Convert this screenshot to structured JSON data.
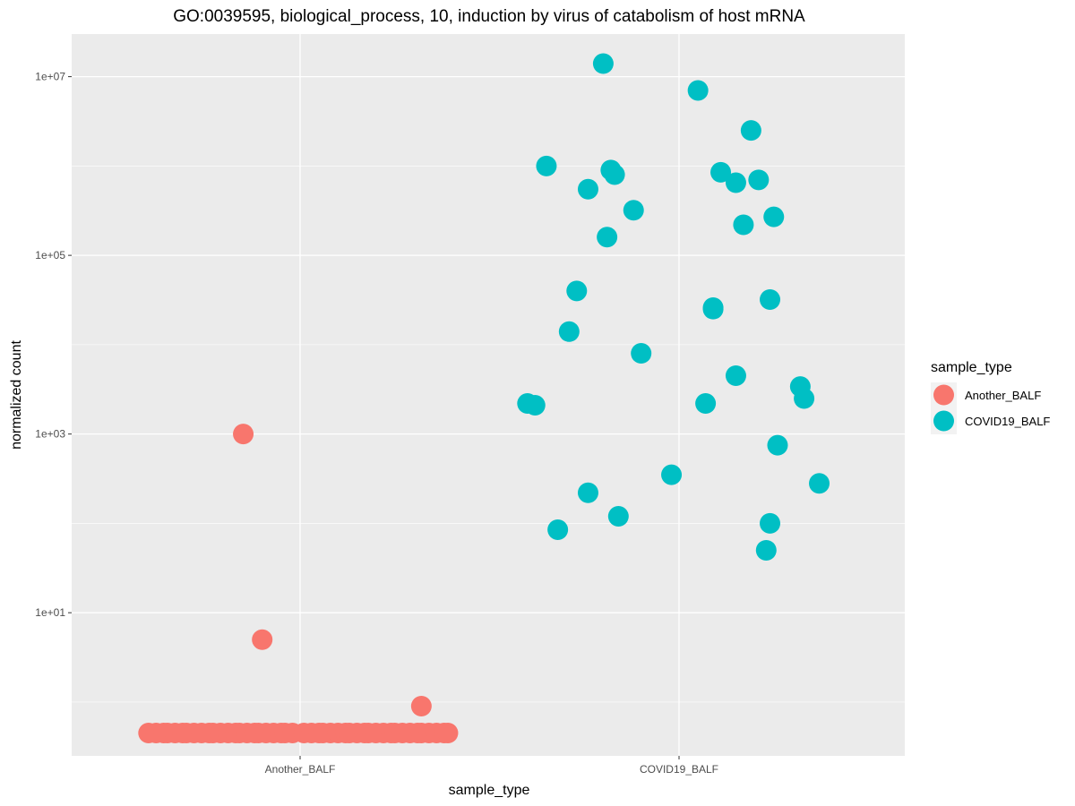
{
  "chart_data": {
    "type": "scatter",
    "title": "GO:0039595, biological_process, 10, induction by virus of catabolism of host mRNA",
    "xlabel": "sample_type",
    "ylabel": "normalized count",
    "y_scale": "log10",
    "ylim": [
      0.25,
      30000000
    ],
    "categories": [
      "Another_BALF",
      "COVID19_BALF"
    ],
    "y_tick_labels": [
      "1e+01",
      "1e+03",
      "1e+05",
      "1e+07"
    ],
    "y_tick_values": [
      10,
      1000,
      100000,
      10000000
    ],
    "grid": true,
    "legend": {
      "title": "sample_type",
      "position": "right",
      "entries": [
        "Another_BALF",
        "COVID19_BALF"
      ]
    },
    "colors": {
      "Another_BALF": "#F8766D",
      "COVID19_BALF": "#00BFC4"
    },
    "series": [
      {
        "name": "Another_BALF",
        "category": "Another_BALF",
        "x": [
          -0.15,
          -0.1,
          0.32,
          -0.4,
          -0.38,
          -0.36,
          -0.35,
          -0.33,
          -0.31,
          -0.3,
          -0.28,
          -0.26,
          -0.24,
          -0.23,
          -0.21,
          -0.19,
          -0.17,
          -0.16,
          -0.14,
          -0.12,
          -0.11,
          -0.09,
          -0.07,
          -0.05,
          -0.04,
          -0.02,
          0.01,
          0.03,
          0.05,
          0.06,
          0.08,
          0.1,
          0.12,
          0.13,
          0.15,
          0.17,
          0.18,
          0.2,
          0.22,
          0.24,
          0.25,
          0.27,
          0.29,
          0.31,
          0.32,
          0.34,
          0.36,
          0.38,
          0.39
        ],
        "y": [
          1000,
          5,
          0.9,
          0.45,
          0.45,
          0.45,
          0.45,
          0.45,
          0.45,
          0.45,
          0.45,
          0.45,
          0.45,
          0.45,
          0.45,
          0.45,
          0.45,
          0.45,
          0.45,
          0.45,
          0.45,
          0.45,
          0.45,
          0.45,
          0.45,
          0.45,
          0.45,
          0.45,
          0.45,
          0.45,
          0.45,
          0.45,
          0.45,
          0.45,
          0.45,
          0.45,
          0.45,
          0.45,
          0.45,
          0.45,
          0.45,
          0.45,
          0.45,
          0.45,
          0.45,
          0.45,
          0.45,
          0.45,
          0.45
        ]
      },
      {
        "name": "COVID19_BALF",
        "category": "COVID19_BALF",
        "x": [
          -0.2,
          0.05,
          0.19,
          -0.18,
          -0.35,
          -0.24,
          -0.12,
          -0.19,
          -0.38,
          -0.29,
          -0.27,
          -0.17,
          -0.16,
          -0.24,
          -0.32,
          0.11,
          -0.4,
          0.21,
          0.15,
          0.25,
          0.07,
          0.17,
          -0.1,
          -0.02,
          0.24,
          0.09,
          0.09,
          0.15,
          0.24,
          0.32,
          0.33,
          0.37,
          0.23,
          0.26
        ],
        "y": [
          14000000,
          7000000,
          2500000,
          900000,
          1000000,
          550000,
          320000,
          160000,
          2100,
          14000,
          40000,
          800000,
          120,
          220,
          85,
          850000,
          2200,
          700000,
          650000,
          270000,
          2200,
          220000,
          8000,
          350,
          32000,
          25000,
          26000,
          4500,
          100,
          3400,
          2500,
          280,
          50,
          750
        ]
      }
    ]
  }
}
